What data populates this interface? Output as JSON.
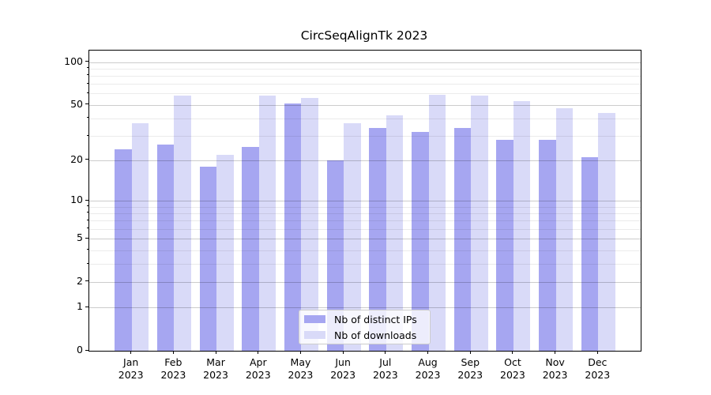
{
  "title": {
    "text": "CircSeqAlignTk 2023"
  },
  "chart_data": {
    "type": "bar",
    "title": "CircSeqAlignTk 2023",
    "categories": [
      "Jan",
      "Feb",
      "Mar",
      "Apr",
      "May",
      "Jun",
      "Jul",
      "Aug",
      "Sep",
      "Oct",
      "Nov",
      "Dec"
    ],
    "category_year": "2023",
    "series": [
      {
        "name": "Nb of distinct IPs",
        "color": "#a6a6f1",
        "values": [
          24,
          26,
          18,
          25,
          51,
          20,
          34,
          32,
          34,
          28,
          28,
          21
        ]
      },
      {
        "name": "Nb of downloads",
        "color": "#d9daf8",
        "values": [
          37,
          58,
          22,
          58,
          56,
          37,
          42,
          59,
          58,
          53,
          47,
          44
        ]
      }
    ],
    "yscale": "symlog",
    "ylim": [
      0,
      120
    ],
    "y_major_ticks": [
      0,
      1,
      2,
      5,
      10,
      20,
      50,
      100
    ],
    "y_minor_ticks": [
      3,
      4,
      6,
      7,
      8,
      9,
      30,
      40,
      60,
      70,
      80,
      90
    ],
    "grid": true,
    "legend_position": "lower-center",
    "xlabel": "",
    "ylabel": ""
  },
  "legend": {
    "items": [
      {
        "label": "Nb of distinct IPs",
        "color": "#a6a6f1"
      },
      {
        "label": "Nb of downloads",
        "color": "#d9daf8"
      }
    ]
  },
  "colors": {
    "bar_dark": "#a6a6f1",
    "bar_light": "#d9daf8",
    "grid_major": "#cccccc",
    "grid_minor": "#ebebeb",
    "spine": "#000000",
    "text": "#000000"
  }
}
